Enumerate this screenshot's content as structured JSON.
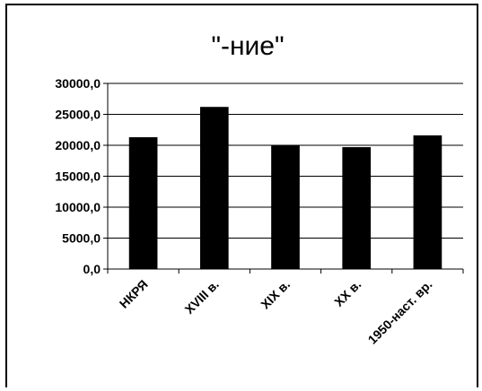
{
  "chart_data": {
    "type": "bar",
    "title": "\"-ние\"",
    "xlabel": "",
    "ylabel": "",
    "categories": [
      "НКРЯ",
      "XVIII в.",
      "XIX в.",
      "XX в.",
      "1950-наст. вр."
    ],
    "values": [
      21300,
      26200,
      20000,
      19700,
      21600
    ],
    "ylim": [
      0,
      30000
    ],
    "yticks": [
      "0,0",
      "5000,0",
      "10000,0",
      "15000,0",
      "20000,0",
      "25000,0",
      "30000,0"
    ],
    "ytick_values": [
      0,
      5000,
      10000,
      15000,
      20000,
      25000,
      30000
    ],
    "grid": true,
    "legend": "none",
    "colors": {
      "bar": "#000000",
      "grid": "#000000",
      "background": "#ffffff"
    }
  }
}
